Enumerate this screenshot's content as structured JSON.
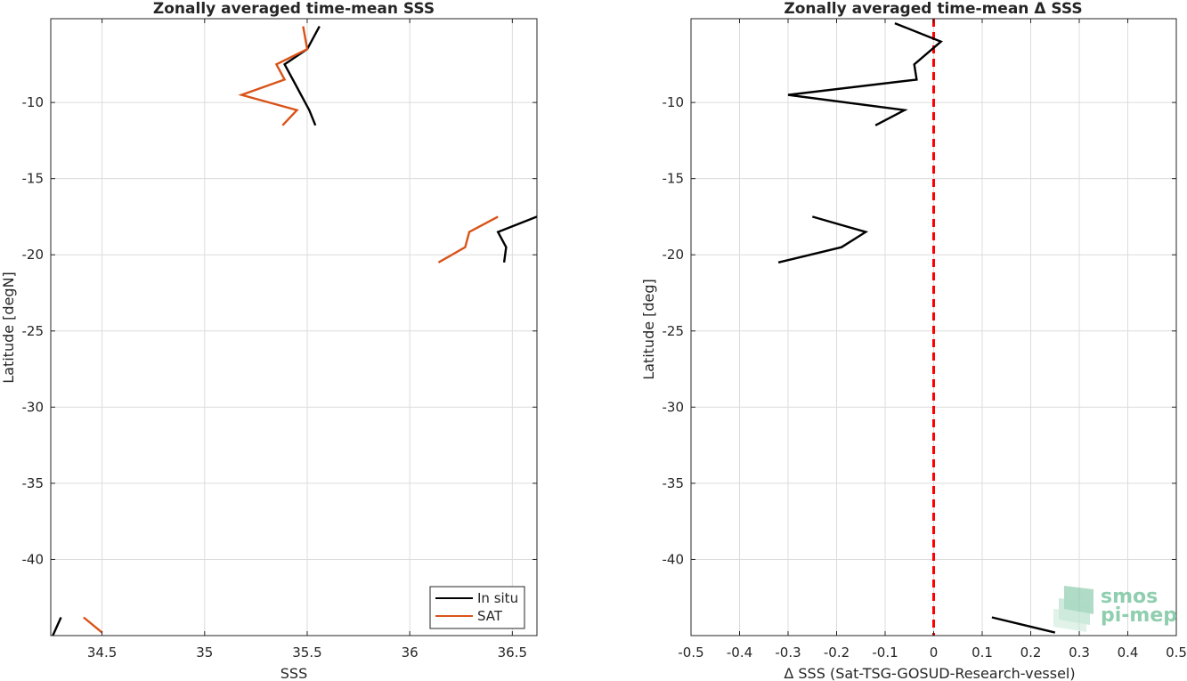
{
  "chart_data": [
    {
      "type": "line",
      "title": "Zonally averaged time-mean SSS",
      "xlabel": "SSS",
      "ylabel": "Latitude [degN]",
      "xlim": [
        34.25,
        36.62
      ],
      "ylim": [
        -45,
        -4.5
      ],
      "xticks": [
        34.5,
        35,
        35.5,
        36,
        36.5
      ],
      "xtick_labels": [
        "34.5",
        "35",
        "35.5",
        "36",
        "36.5"
      ],
      "yticks": [
        -10,
        -15,
        -20,
        -25,
        -30,
        -35,
        -40
      ],
      "ytick_labels": [
        "-10",
        "-15",
        "-20",
        "-25",
        "-30",
        "-35",
        "-40"
      ],
      "grid": true,
      "legend": {
        "placement": "bottom-right",
        "entries": [
          "In situ",
          "SAT"
        ]
      },
      "series": [
        {
          "name": "In situ",
          "color": "#000000",
          "segments": [
            [
              [
                35.56,
                -5.0
              ],
              [
                35.5,
                -6.5
              ],
              [
                35.39,
                -7.5
              ],
              [
                35.45,
                -9.0
              ],
              [
                35.51,
                -10.5
              ],
              [
                35.54,
                -11.5
              ]
            ],
            [
              [
                36.62,
                -17.5
              ],
              [
                36.43,
                -18.5
              ],
              [
                36.47,
                -19.5
              ],
              [
                36.46,
                -20.5
              ]
            ],
            [
              [
                34.26,
                -45.0
              ],
              [
                34.3,
                -43.8
              ]
            ]
          ]
        },
        {
          "name": "SAT",
          "color": "#d95319",
          "segments": [
            [
              [
                35.48,
                -5.0
              ],
              [
                35.5,
                -6.5
              ],
              [
                35.35,
                -7.5
              ],
              [
                35.39,
                -8.5
              ],
              [
                35.18,
                -9.5
              ],
              [
                35.45,
                -10.5
              ],
              [
                35.38,
                -11.5
              ]
            ],
            [
              [
                36.43,
                -17.5
              ],
              [
                36.29,
                -18.5
              ],
              [
                36.27,
                -19.5
              ],
              [
                36.14,
                -20.5
              ]
            ],
            [
              [
                34.41,
                -43.8
              ],
              [
                34.5,
                -44.8
              ]
            ]
          ]
        }
      ]
    },
    {
      "type": "line",
      "title": "Zonally averaged time-mean Δ SSS",
      "xlabel": "Δ SSS (Sat-TSG-GOSUD-Research-vessel)",
      "ylabel": "Latitude [deg]",
      "xlim": [
        -0.5,
        0.5
      ],
      "ylim": [
        -45,
        -4.5
      ],
      "xticks": [
        -0.5,
        -0.4,
        -0.3,
        -0.2,
        -0.1,
        0,
        0.1,
        0.2,
        0.3,
        0.4,
        0.5
      ],
      "xtick_labels": [
        "-0.5",
        "-0.4",
        "-0.3",
        "-0.2",
        "-0.1",
        "0",
        "0.1",
        "0.2",
        "0.3",
        "0.4",
        "0.5"
      ],
      "yticks": [
        -10,
        -15,
        -20,
        -25,
        -30,
        -35,
        -40
      ],
      "ytick_labels": [
        "-10",
        "-15",
        "-20",
        "-25",
        "-30",
        "-35",
        "-40"
      ],
      "grid": true,
      "reference_line": {
        "x": 0,
        "color": "#ff0000",
        "style": "dashed"
      },
      "series": [
        {
          "color": "#000000",
          "segments": [
            [
              [
                -0.08,
                -4.8
              ],
              [
                0.015,
                -6.0
              ],
              [
                -0.04,
                -7.5
              ],
              [
                -0.035,
                -8.5
              ],
              [
                -0.3,
                -9.5
              ],
              [
                -0.06,
                -10.5
              ],
              [
                -0.12,
                -11.5
              ]
            ],
            [
              [
                -0.25,
                -17.5
              ],
              [
                -0.14,
                -18.5
              ],
              [
                -0.19,
                -19.5
              ],
              [
                -0.32,
                -20.5
              ]
            ],
            [
              [
                0.12,
                -43.8
              ],
              [
                0.25,
                -44.8
              ]
            ]
          ]
        }
      ]
    }
  ],
  "logo": {
    "line1": "smos",
    "line2": "pi-mep",
    "color": "#7cc6a2"
  }
}
